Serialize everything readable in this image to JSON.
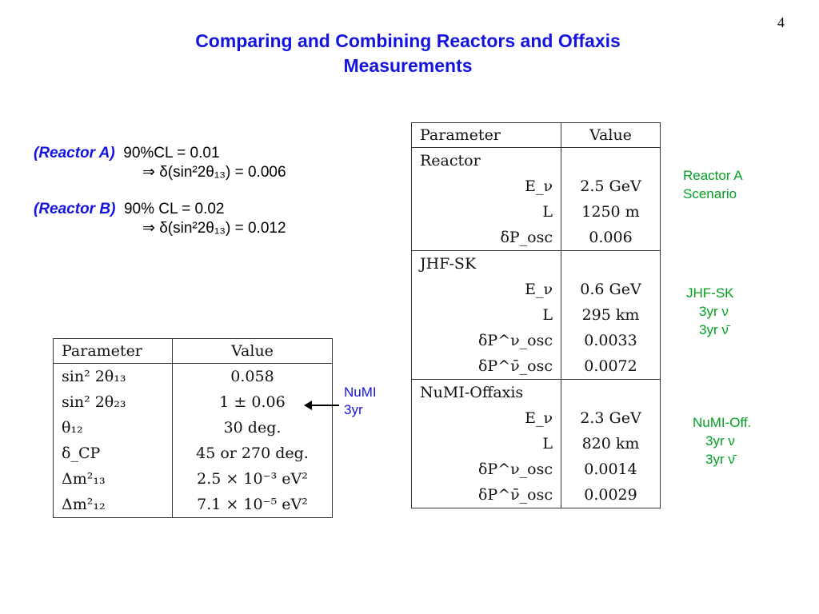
{
  "page_number": "4",
  "title": {
    "line1": "Comparing and Combining Reactors and Offaxis",
    "line2": "Measurements"
  },
  "reactor_a": {
    "label": "(Reactor A)",
    "cl": "90%CL = 0.01",
    "result": "⇒ δ(sin²2θ₁₃) = 0.006"
  },
  "reactor_b": {
    "label": "(Reactor B)",
    "cl": "90% CL = 0.02",
    "result": "⇒ δ(sin²2θ₁₃) = 0.012"
  },
  "left_table": {
    "headers": [
      "Parameter",
      "Value"
    ],
    "rows": [
      {
        "param": "sin² 2θ₁₃",
        "value": "0.058"
      },
      {
        "param": "sin² 2θ₂₃",
        "value": "1 ± 0.06"
      },
      {
        "param": "θ₁₂",
        "value": "30 deg."
      },
      {
        "param": "δ_CP",
        "value": "45 or 270 deg."
      },
      {
        "param": "Δm²₁₃",
        "value": "2.5 × 10⁻³ eV²"
      },
      {
        "param": "Δm²₁₂",
        "value": "7.1 × 10⁻⁵ eV²"
      }
    ]
  },
  "numi_note": {
    "line1": "NuMI",
    "line2": "3yr"
  },
  "right_table": {
    "headers": [
      "Parameter",
      "Value"
    ],
    "groups": [
      {
        "name": "Reactor",
        "rows": [
          {
            "param": "E_ν",
            "value": "2.5 GeV"
          },
          {
            "param": "L",
            "value": "1250 m"
          },
          {
            "param": "δP_osc",
            "value": "0.006"
          }
        ]
      },
      {
        "name": "JHF-SK",
        "rows": [
          {
            "param": "E_ν",
            "value": "0.6 GeV"
          },
          {
            "param": "L",
            "value": "295 km"
          },
          {
            "param": "δP^ν_osc",
            "value": "0.0033"
          },
          {
            "param": "δP^ν̄_osc",
            "value": "0.0072"
          }
        ]
      },
      {
        "name": "NuMI-Offaxis",
        "rows": [
          {
            "param": "E_ν",
            "value": "2.3 GeV"
          },
          {
            "param": "L",
            "value": "820 km"
          },
          {
            "param": "δP^ν_osc",
            "value": "0.0014"
          },
          {
            "param": "δP^ν̄_osc",
            "value": "0.0029"
          }
        ]
      }
    ]
  },
  "side_notes": {
    "reactor": {
      "line1": "Reactor A",
      "line2": "Scenario"
    },
    "jhf": {
      "line1": "JHF-SK",
      "line2": "3yr ν",
      "line3": "3yr ν̄"
    },
    "numi": {
      "line1": "NuMI-Off.",
      "line2": "3yr ν",
      "line3": "3yr ν̄"
    }
  },
  "colors": {
    "title": "#1414e0",
    "label_blue": "#1414e0",
    "note_green": "#00a020"
  }
}
